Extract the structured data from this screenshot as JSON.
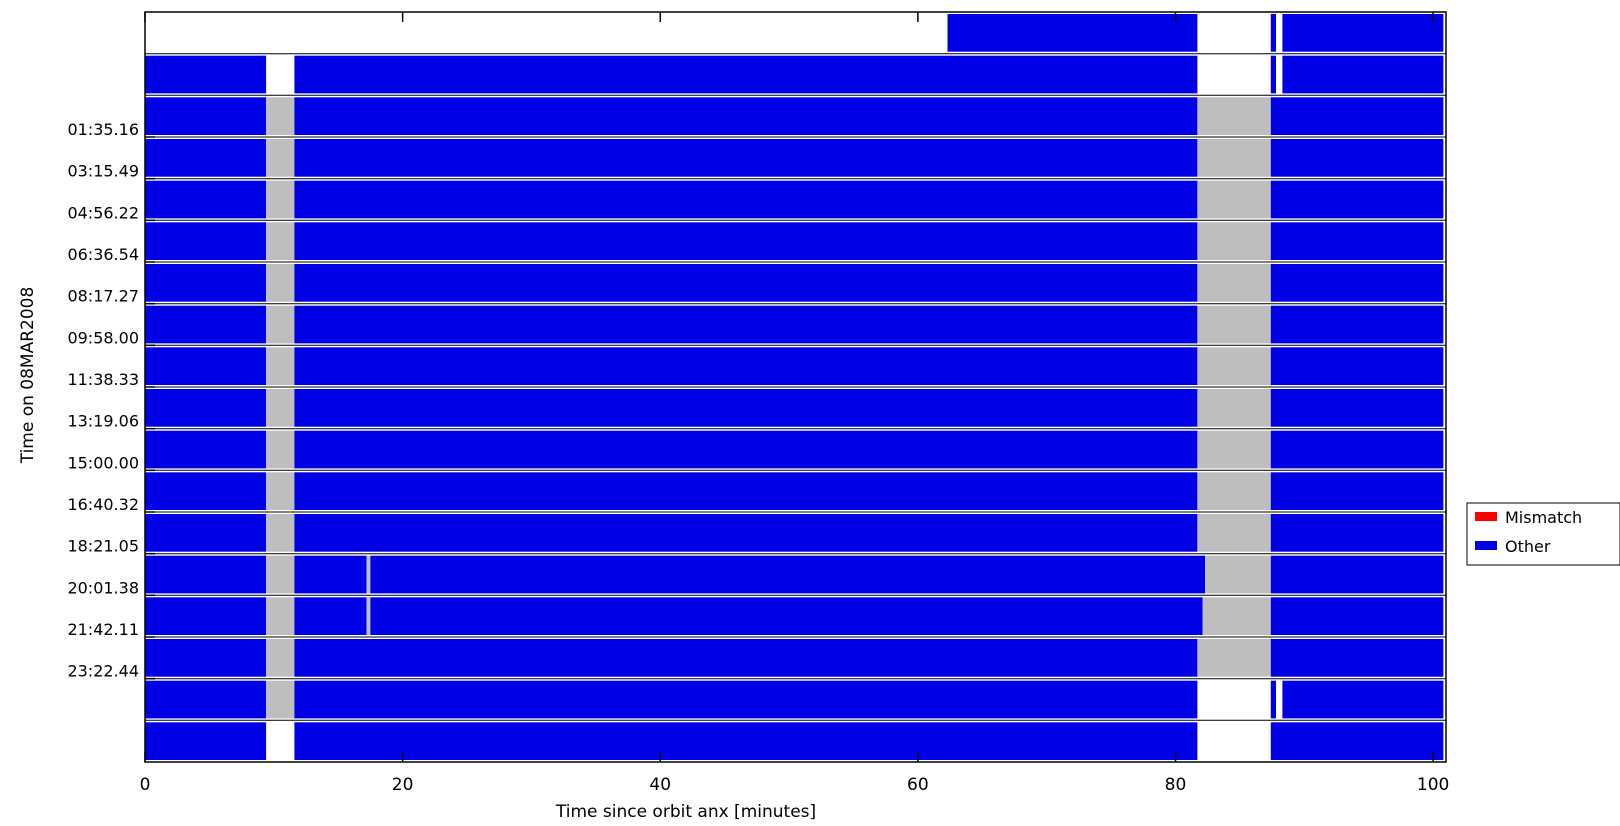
{
  "chart_data": {
    "type": "heatmap",
    "xlabel": "Time since orbit anx [minutes]",
    "ylabel": "Time on 08MAR2008",
    "xlim": [
      0,
      101
    ],
    "x_ticks": [
      0,
      20,
      40,
      60,
      80,
      100
    ],
    "y_tick_labels": [
      "01:35.16",
      "03:15.49",
      "04:56.22",
      "06:36.54",
      "08:17.27",
      "09:58.00",
      "11:38.33",
      "13:19.06",
      "15:00.00",
      "16:40.32",
      "18:21.05",
      "20:01.38",
      "21:42.11",
      "23:22.44"
    ],
    "grid": false,
    "legend_position": "right",
    "legend": [
      {
        "name": "Mismatch",
        "color": "#ff0000"
      },
      {
        "name": "Other",
        "color": "#0000e6"
      }
    ],
    "colors": {
      "other": "#0000e6",
      "gap": "#bebebe",
      "mismatch": "#ff0000"
    },
    "orbits": [
      {
        "segments": [
          [
            62.3,
            81.7,
            "Other"
          ],
          [
            87.4,
            87.8,
            "Other"
          ],
          [
            88.3,
            100.8,
            "Other"
          ]
        ]
      },
      {
        "segments": [
          [
            0,
            9.4,
            "Other"
          ],
          [
            11.6,
            81.7,
            "Other"
          ],
          [
            87.4,
            87.8,
            "Other"
          ],
          [
            88.3,
            100.8,
            "Other"
          ]
        ]
      },
      {
        "segments": [
          [
            0,
            9.4,
            "Other"
          ],
          [
            9.4,
            11.6,
            "Gap"
          ],
          [
            11.6,
            81.7,
            "Other"
          ],
          [
            81.7,
            87.4,
            "Gap"
          ],
          [
            87.4,
            100.8,
            "Other"
          ]
        ]
      },
      {
        "segments": [
          [
            0,
            9.4,
            "Other"
          ],
          [
            9.4,
            11.6,
            "Gap"
          ],
          [
            11.6,
            81.7,
            "Other"
          ],
          [
            81.7,
            87.4,
            "Gap"
          ],
          [
            87.4,
            100.8,
            "Other"
          ]
        ]
      },
      {
        "segments": [
          [
            0,
            9.4,
            "Other"
          ],
          [
            9.4,
            11.6,
            "Gap"
          ],
          [
            11.6,
            81.7,
            "Other"
          ],
          [
            81.7,
            87.4,
            "Gap"
          ],
          [
            87.4,
            100.8,
            "Other"
          ]
        ]
      },
      {
        "segments": [
          [
            0,
            9.4,
            "Other"
          ],
          [
            9.4,
            11.6,
            "Gap"
          ],
          [
            11.6,
            81.7,
            "Other"
          ],
          [
            81.7,
            87.4,
            "Gap"
          ],
          [
            87.4,
            100.8,
            "Other"
          ]
        ]
      },
      {
        "segments": [
          [
            0,
            9.4,
            "Other"
          ],
          [
            9.4,
            11.6,
            "Gap"
          ],
          [
            11.6,
            81.7,
            "Other"
          ],
          [
            81.7,
            87.4,
            "Gap"
          ],
          [
            87.4,
            100.8,
            "Other"
          ]
        ]
      },
      {
        "segments": [
          [
            0,
            9.4,
            "Other"
          ],
          [
            9.4,
            11.6,
            "Gap"
          ],
          [
            11.6,
            81.7,
            "Other"
          ],
          [
            81.7,
            87.4,
            "Gap"
          ],
          [
            87.4,
            100.8,
            "Other"
          ]
        ]
      },
      {
        "segments": [
          [
            0,
            9.4,
            "Other"
          ],
          [
            9.4,
            11.6,
            "Gap"
          ],
          [
            11.6,
            81.7,
            "Other"
          ],
          [
            81.7,
            87.4,
            "Gap"
          ],
          [
            87.4,
            100.8,
            "Other"
          ]
        ]
      },
      {
        "segments": [
          [
            0,
            9.4,
            "Other"
          ],
          [
            9.4,
            11.6,
            "Gap"
          ],
          [
            11.6,
            81.7,
            "Other"
          ],
          [
            81.7,
            87.4,
            "Gap"
          ],
          [
            87.4,
            100.8,
            "Other"
          ]
        ]
      },
      {
        "segments": [
          [
            0,
            9.4,
            "Other"
          ],
          [
            9.4,
            11.6,
            "Gap"
          ],
          [
            11.6,
            81.7,
            "Other"
          ],
          [
            81.7,
            87.4,
            "Gap"
          ],
          [
            87.4,
            100.8,
            "Other"
          ]
        ]
      },
      {
        "segments": [
          [
            0,
            9.4,
            "Other"
          ],
          [
            9.4,
            11.6,
            "Gap"
          ],
          [
            11.6,
            81.7,
            "Other"
          ],
          [
            81.7,
            87.4,
            "Gap"
          ],
          [
            87.4,
            100.8,
            "Other"
          ]
        ]
      },
      {
        "segments": [
          [
            0,
            9.4,
            "Other"
          ],
          [
            9.4,
            11.6,
            "Gap"
          ],
          [
            11.6,
            81.7,
            "Other"
          ],
          [
            81.7,
            87.4,
            "Gap"
          ],
          [
            87.4,
            100.8,
            "Other"
          ]
        ]
      },
      {
        "segments": [
          [
            0,
            9.4,
            "Other"
          ],
          [
            9.4,
            11.6,
            "Gap"
          ],
          [
            11.6,
            17.2,
            "Other"
          ],
          [
            17.2,
            17.5,
            "Gap"
          ],
          [
            17.5,
            82.3,
            "Other"
          ],
          [
            82.3,
            87.4,
            "Gap"
          ],
          [
            87.4,
            100.8,
            "Other"
          ]
        ]
      },
      {
        "segments": [
          [
            0,
            9.4,
            "Other"
          ],
          [
            9.4,
            11.6,
            "Gap"
          ],
          [
            11.6,
            17.2,
            "Other"
          ],
          [
            17.2,
            17.5,
            "Gap"
          ],
          [
            17.5,
            82.1,
            "Other"
          ],
          [
            82.1,
            87.4,
            "Gap"
          ],
          [
            87.4,
            100.8,
            "Other"
          ]
        ]
      },
      {
        "segments": [
          [
            0,
            9.4,
            "Other"
          ],
          [
            9.4,
            11.6,
            "Gap"
          ],
          [
            11.6,
            81.7,
            "Other"
          ],
          [
            81.7,
            87.4,
            "Gap"
          ],
          [
            87.4,
            100.8,
            "Other"
          ]
        ]
      },
      {
        "segments": [
          [
            0,
            9.4,
            "Other"
          ],
          [
            9.4,
            11.6,
            "Gap"
          ],
          [
            11.6,
            81.7,
            "Other"
          ],
          [
            87.4,
            87.8,
            "Other"
          ],
          [
            88.3,
            100.8,
            "Other"
          ]
        ]
      },
      {
        "segments": [
          [
            0,
            9.4,
            "Other"
          ],
          [
            11.6,
            81.7,
            "Other"
          ],
          [
            87.4,
            100.8,
            "Other"
          ]
        ]
      }
    ]
  }
}
